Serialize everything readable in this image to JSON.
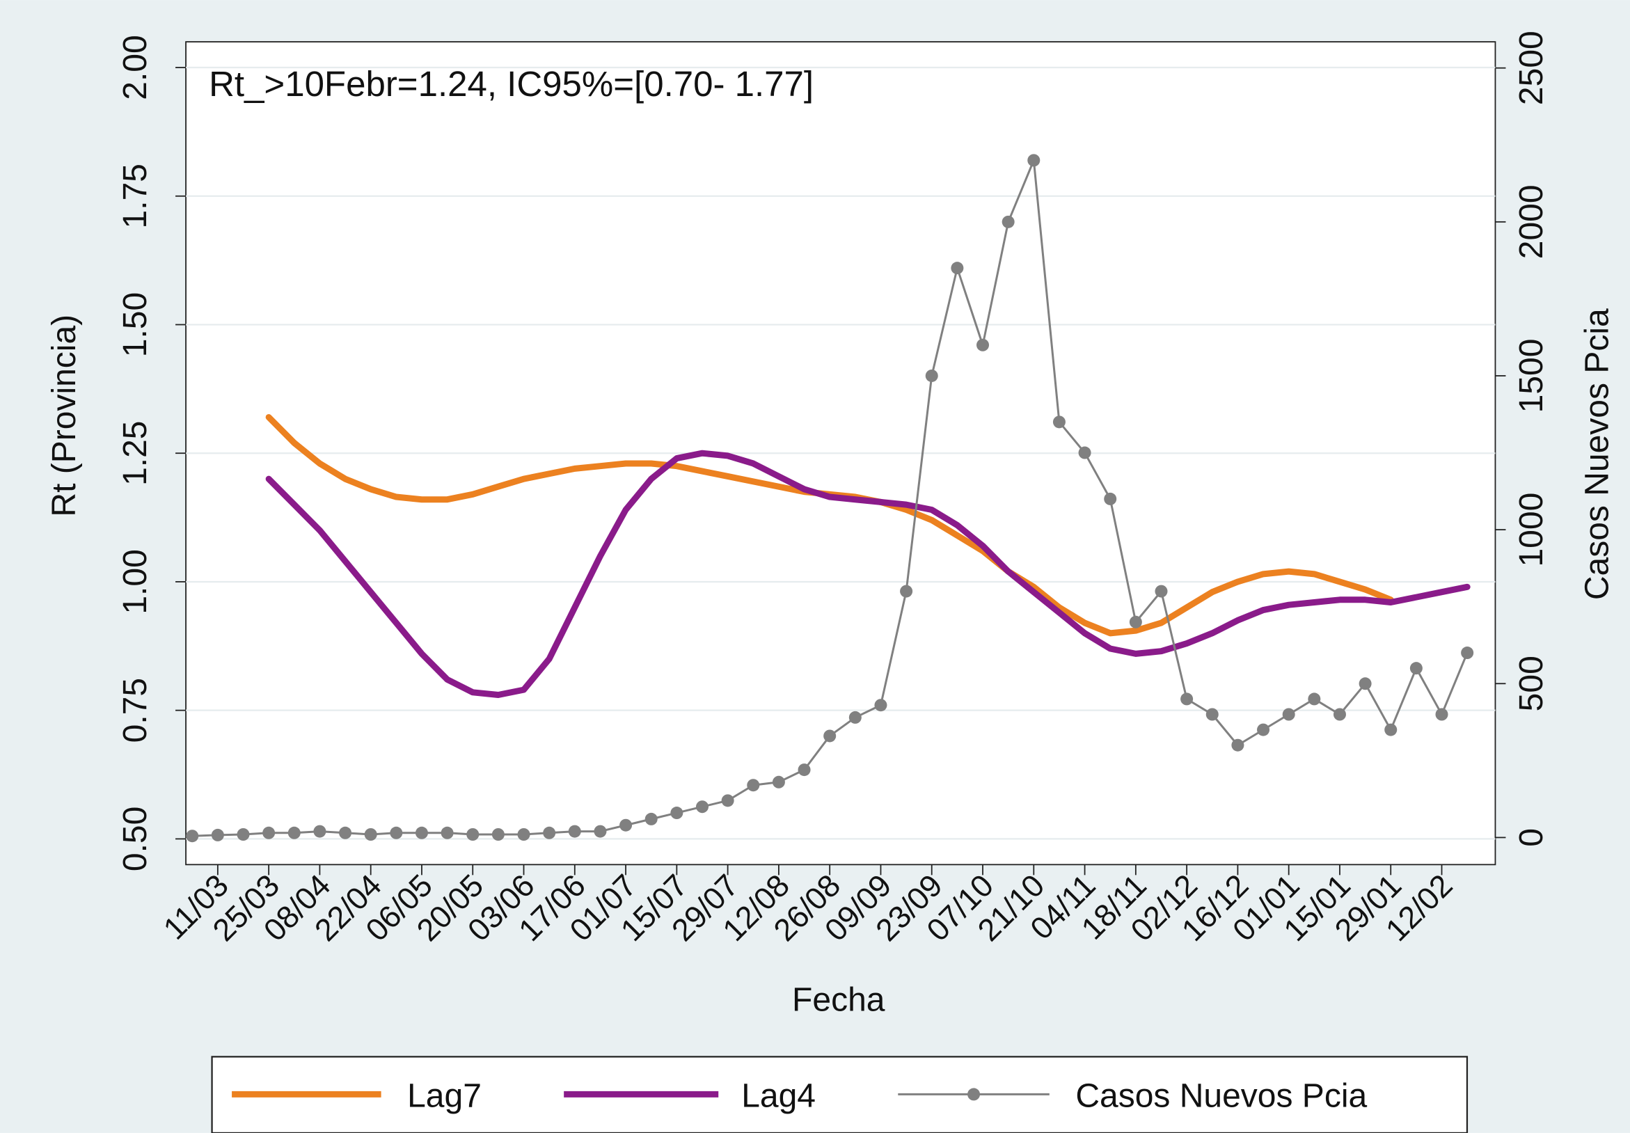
{
  "chart_data": {
    "type": "line",
    "annotation": "Rt_>10Febr=1.24, IC95%=[0.70- 1.77]",
    "x_label": "Fecha",
    "y_label": "Rt (Provincia)",
    "y2_label": "Casos Nuevos Pcia",
    "categories": [
      null,
      "11/03",
      null,
      "25/03",
      null,
      "08/04",
      null,
      "22/04",
      null,
      "06/05",
      null,
      "20/05",
      null,
      "03/06",
      null,
      "17/06",
      null,
      "01/07",
      null,
      "15/07",
      null,
      "29/07",
      null,
      "12/08",
      null,
      "26/08",
      null,
      "09/09",
      null,
      "23/09",
      null,
      "07/10",
      null,
      "21/10",
      null,
      "04/11",
      null,
      "18/11",
      null,
      "02/12",
      null,
      "16/12",
      null,
      "01/01",
      null,
      "15/01",
      null,
      "29/01",
      null,
      "12/02",
      null
    ],
    "ylim": [
      0.45,
      2.05
    ],
    "yticks": [
      {
        "value": 0.5,
        "label": "0.50"
      },
      {
        "value": 0.75,
        "label": "0.75"
      },
      {
        "value": 1,
        "label": "1.00"
      },
      {
        "value": 1.25,
        "label": "1.25"
      },
      {
        "value": 1.5,
        "label": "1.50"
      },
      {
        "value": 1.75,
        "label": "1.75"
      },
      {
        "value": 2,
        "label": "2.00"
      }
    ],
    "y2lim": [
      -88,
      2585
    ],
    "y2ticks": [
      0,
      500,
      1000,
      1500,
      2000,
      2500
    ],
    "grid": true,
    "legend": "bottom",
    "series": [
      {
        "name": "Lag7",
        "color": "#ec8120",
        "values": [
          null,
          null,
          null,
          1.32,
          1.27,
          1.23,
          1.2,
          1.18,
          1.165,
          1.16,
          1.16,
          1.17,
          1.185,
          1.2,
          1.21,
          1.22,
          1.225,
          1.23,
          1.23,
          1.225,
          1.215,
          1.205,
          1.195,
          1.185,
          1.175,
          1.17,
          1.165,
          1.155,
          1.14,
          1.12,
          1.09,
          1.06,
          1.02,
          0.99,
          0.95,
          0.92,
          0.9,
          0.905,
          0.92,
          0.95,
          0.98,
          1.0,
          1.015,
          1.02,
          1.015,
          1.0,
          0.985,
          0.965,
          null,
          null,
          null
        ]
      },
      {
        "name": "Lag4",
        "color": "#8a1b8a",
        "values": [
          null,
          null,
          null,
          1.2,
          1.15,
          1.1,
          1.04,
          0.98,
          0.92,
          0.86,
          0.81,
          0.785,
          0.78,
          0.79,
          0.85,
          0.95,
          1.05,
          1.14,
          1.2,
          1.24,
          1.25,
          1.245,
          1.23,
          1.205,
          1.18,
          1.165,
          1.16,
          1.155,
          1.15,
          1.14,
          1.11,
          1.07,
          1.02,
          0.98,
          0.94,
          0.9,
          0.87,
          0.86,
          0.865,
          0.88,
          0.9,
          0.925,
          0.945,
          0.955,
          0.96,
          0.965,
          0.965,
          0.96,
          0.97,
          0.98,
          0.99
        ]
      },
      {
        "name": "Casos Nuevos Pcia",
        "color": "#808080",
        "axis": "y2",
        "markers": true,
        "values": [
          5,
          8,
          10,
          15,
          15,
          20,
          15,
          10,
          15,
          15,
          15,
          10,
          10,
          10,
          15,
          20,
          20,
          40,
          60,
          80,
          100,
          120,
          170,
          180,
          220,
          330,
          390,
          430,
          800,
          1500,
          1850,
          1600,
          2000,
          2200,
          1350,
          1250,
          1100,
          700,
          800,
          450,
          400,
          300,
          350,
          400,
          450,
          400,
          500,
          350,
          550,
          400,
          600
        ]
      }
    ]
  }
}
